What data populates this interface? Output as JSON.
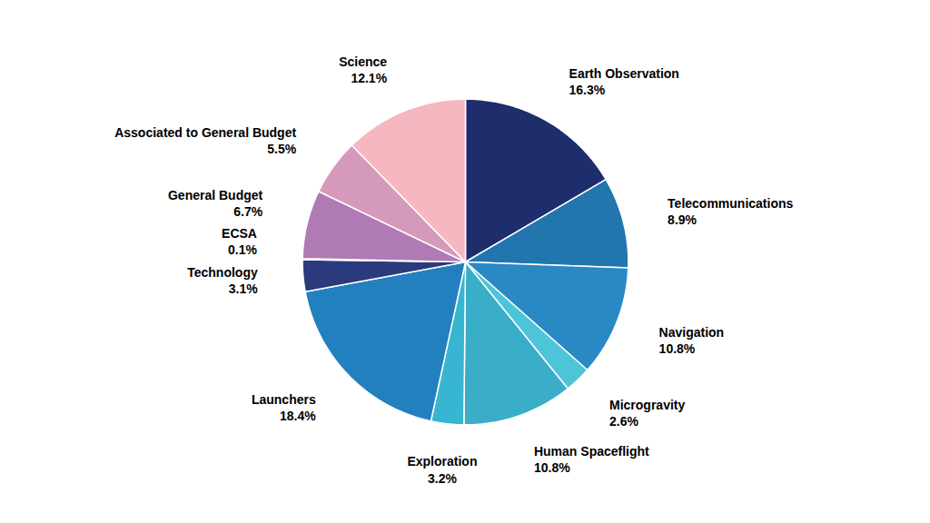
{
  "chart_data": {
    "type": "pie",
    "categories": [
      "Earth Observation",
      "Telecommunications",
      "Navigation",
      "Microgravity",
      "Human Spaceflight",
      "Exploration",
      "Launchers",
      "Technology",
      "ECSA",
      "General Budget",
      "Associated to General Budget",
      "Science"
    ],
    "values": [
      16.3,
      8.9,
      10.8,
      2.6,
      10.8,
      3.2,
      18.4,
      3.1,
      0.1,
      6.7,
      5.5,
      12.1
    ],
    "value_labels": [
      "16.3%",
      "8.9%",
      "10.8%",
      "2.6%",
      "10.8%",
      "3.2%",
      "18.4%",
      "3.1%",
      "0.1%",
      "6.7%",
      "5.5%",
      "12.1%"
    ],
    "colors": [
      "#1e2d6b",
      "#2176ae",
      "#2989c4",
      "#4dc4d8",
      "#3aadc8",
      "#38b5d0",
      "#2380bf",
      "#2a3a7c",
      "#7060a0",
      "#b07ab5",
      "#d499bb",
      "#f5b8c0"
    ],
    "data_labels": true
  }
}
